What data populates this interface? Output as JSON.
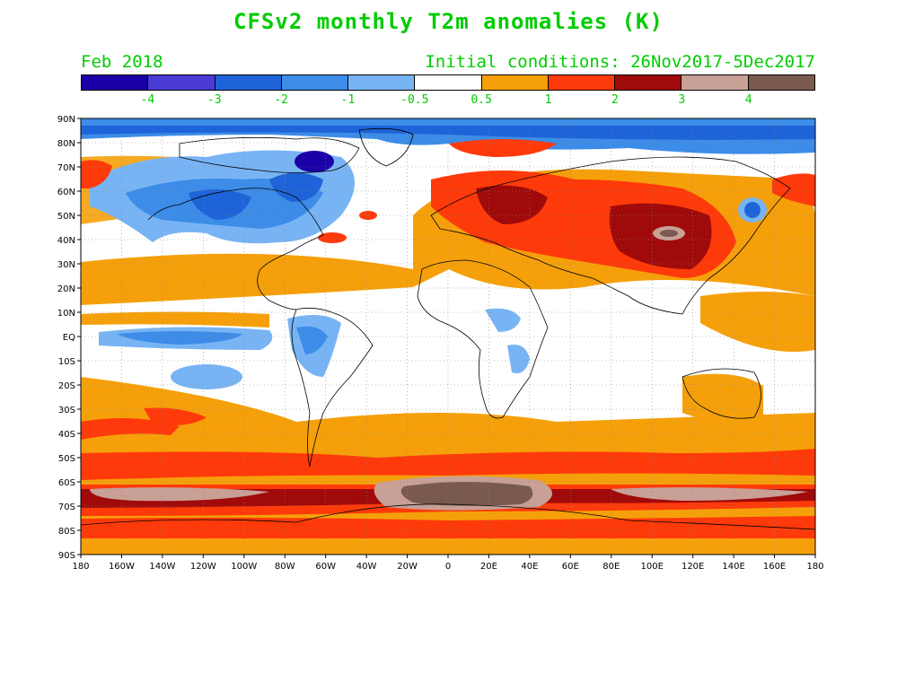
{
  "title": "CFSv2 monthly T2m anomalies (K)",
  "valid_label": "Feb 2018",
  "init_label": "Initial conditions: 26Nov2017-5Dec2017",
  "colorbar": {
    "colors": [
      "#1b00a8",
      "#4a3ad6",
      "#1e64d8",
      "#3c8ce8",
      "#78b4f4",
      "#ffffff",
      "#f5a00a",
      "#ff3a0a",
      "#a00a0a",
      "#c8a096",
      "#7a5a4e"
    ],
    "labels": [
      "-4",
      "-3",
      "-2",
      "-1",
      "-0.5",
      "0.5",
      "1",
      "2",
      "3",
      "4"
    ],
    "text_color": "#00cc00"
  },
  "map": {
    "lat_labels": [
      "90N",
      "80N",
      "70N",
      "60N",
      "50N",
      "40N",
      "30N",
      "20N",
      "10N",
      "EQ",
      "10S",
      "20S",
      "30S",
      "40S",
      "50S",
      "60S",
      "70S",
      "80S",
      "90S"
    ],
    "lon_labels": [
      "180",
      "160W",
      "140W",
      "120W",
      "100W",
      "80W",
      "60W",
      "40W",
      "20W",
      "0",
      "20E",
      "40E",
      "60E",
      "80E",
      "100E",
      "120E",
      "140E",
      "160E",
      "180"
    ],
    "grid": true,
    "projection": "cylindrical equidistant"
  }
}
